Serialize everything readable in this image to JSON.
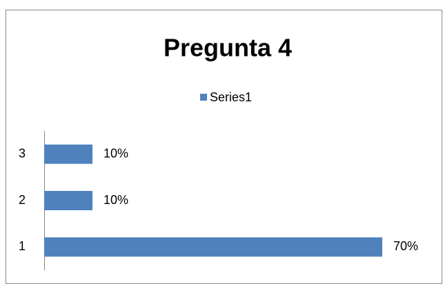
{
  "chart_data": {
    "type": "bar",
    "orientation": "horizontal",
    "title": "Pregunta 4",
    "categories": [
      "1",
      "2",
      "3"
    ],
    "series": [
      {
        "name": "Series1",
        "color": "#4f81bd",
        "values": [
          70,
          10,
          10
        ],
        "value_labels": [
          "70%",
          "10%",
          "10%"
        ]
      }
    ]
  }
}
